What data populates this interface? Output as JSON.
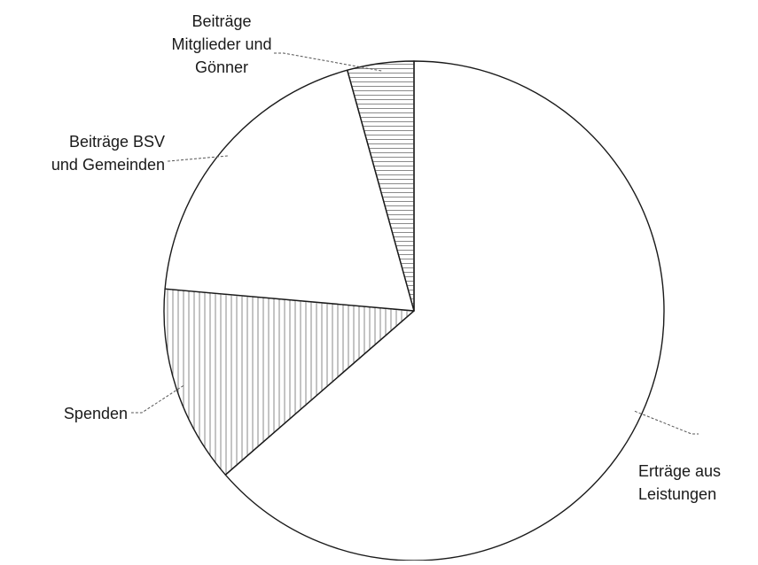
{
  "chart_data": {
    "type": "pie",
    "title": "",
    "categories": [
      "Erträge aus Leistungen",
      "Spenden",
      "Beiträge BSV und Gemeinden",
      "Beiträge Mitglieder und Gönner"
    ],
    "values": [
      63.6,
      12.8,
      19.3,
      4.3
    ],
    "unit": "%",
    "start_angle_deg": 0,
    "direction": "clockwise",
    "legend": "none",
    "label_lines": [
      [
        "Erträge aus",
        "Leistungen"
      ],
      [
        "Spenden"
      ],
      [
        "Beiträge BSV",
        "und Gemeinden"
      ],
      [
        "Beiträge",
        "Mitglieder und",
        "Gönner"
      ]
    ],
    "fills": [
      "none",
      "vertical-hatch",
      "none",
      "horizontal-hatch"
    ],
    "colors": {
      "stroke": "#1a1a1a",
      "hatch": "#8a8a8a",
      "background": "#ffffff"
    }
  }
}
